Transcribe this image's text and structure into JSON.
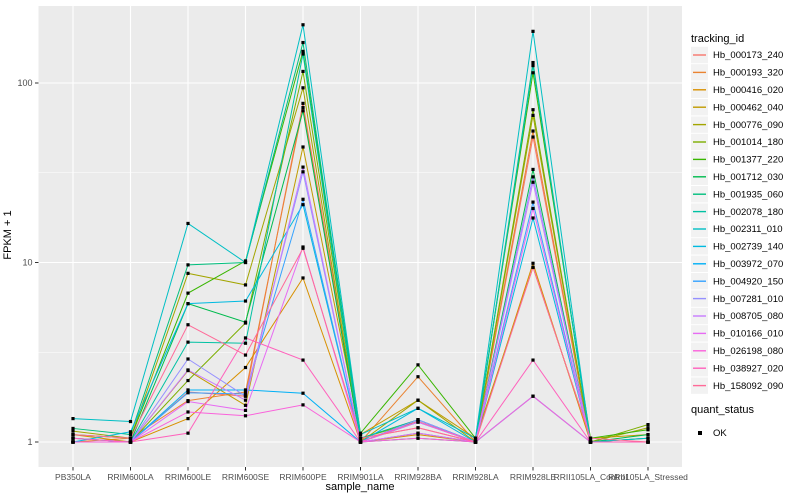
{
  "chart_data": {
    "type": "line",
    "title": "",
    "xlabel": "sample_name",
    "ylabel": "FPKM + 1",
    "y_scale": "log10",
    "y_ticks": [
      1,
      10,
      100
    ],
    "y_minor_ticks": [
      3.1623,
      31.623
    ],
    "ylim": [
      0.73,
      280
    ],
    "grid": "on",
    "legend_position": "right",
    "legend_title": "tracking_id",
    "quant_legend": {
      "title": "quant_status",
      "label": "OK"
    },
    "point_marker": "black-square",
    "colors": {
      "panel_bg": "#EBEBEB",
      "grid": "#FFFFFF",
      "tick_text": "#4D4D4D",
      "axis_text": "#000000",
      "legend_key_bg": "#F2F2F2",
      "point": "#000000"
    },
    "categories": [
      "PB350LA",
      "RRIM600LA",
      "RRIM600LE",
      "RRIM600SE",
      "RRIM600PE",
      "RRIM901LA",
      "RRIM928BA",
      "RRIM928LA",
      "RRIM928LE",
      "RRII105LA_Control",
      "RRII105LA_Stressed"
    ],
    "series": [
      {
        "name": "Hb_000173_240",
        "color": "#F8766D",
        "values": [
          1.05,
          1.0,
          1.9,
          1.8,
          77,
          1.05,
          1.2,
          1.0,
          50,
          1.0,
          1.05
        ]
      },
      {
        "name": "Hb_000193_320",
        "color": "#EA8331",
        "values": [
          1.0,
          1.05,
          1.7,
          1.9,
          73,
          1.0,
          2.31,
          1.0,
          54,
          1.0,
          1.0
        ]
      },
      {
        "name": "Hb_000416_020",
        "color": "#D89000",
        "values": [
          1.1,
          1.0,
          1.35,
          2.6,
          8.2,
          1.0,
          1.1,
          1.0,
          9.9,
          1.0,
          1.0
        ]
      },
      {
        "name": "Hb_000462_040",
        "color": "#C09B00",
        "values": [
          1.0,
          1.0,
          2.5,
          1.6,
          44,
          1.1,
          1.71,
          1.05,
          9.4,
          1.05,
          1.1
        ]
      },
      {
        "name": "Hb_000776_090",
        "color": "#A3A500",
        "values": [
          1.15,
          1.05,
          8.7,
          7.5,
          94,
          1.0,
          1.71,
          1.0,
          66,
          1.0,
          1.2
        ]
      },
      {
        "name": "Hb_001014_180",
        "color": "#7CAE00",
        "values": [
          1.0,
          1.0,
          2.2,
          4.6,
          116,
          1.05,
          1.3,
          1.0,
          71,
          1.0,
          1.25
        ]
      },
      {
        "name": "Hb_001377_220",
        "color": "#39B600",
        "values": [
          1.1,
          1.05,
          6.75,
          10.2,
          150,
          1.12,
          2.69,
          1.05,
          114,
          1.05,
          1.17
        ]
      },
      {
        "name": "Hb_001712_030",
        "color": "#00BB4E",
        "values": [
          1.0,
          1.0,
          5.9,
          4.65,
          70,
          1.0,
          1.05,
          1.0,
          33,
          1.0,
          1.1
        ]
      },
      {
        "name": "Hb_001935_060",
        "color": "#00BF7D",
        "values": [
          1.19,
          1.1,
          9.7,
          10.0,
          168,
          1.05,
          1.33,
          1.0,
          130,
          1.0,
          1.05
        ]
      },
      {
        "name": "Hb_002078_180",
        "color": "#00C1A3",
        "values": [
          1.05,
          1.0,
          3.6,
          3.55,
          145,
          1.0,
          1.12,
          1.0,
          125,
          1.0,
          1.0
        ]
      },
      {
        "name": "Hb_002311_010",
        "color": "#00BFC4",
        "values": [
          1.35,
          1.3,
          16.5,
          10.0,
          211,
          1.1,
          1.54,
          1.05,
          194,
          1.0,
          1.05
        ]
      },
      {
        "name": "Hb_002739_140",
        "color": "#00BAE0",
        "values": [
          1.0,
          1.14,
          5.9,
          6.1,
          21,
          1.0,
          1.54,
          1.0,
          17.7,
          1.0,
          1.0
        ]
      },
      {
        "name": "Hb_003972_070",
        "color": "#00B0F6",
        "values": [
          1.0,
          1.0,
          1.95,
          1.95,
          1.87,
          1.0,
          1.33,
          1.0,
          1.8,
          1.0,
          1.0
        ]
      },
      {
        "name": "Hb_004920_150",
        "color": "#35A2FF",
        "values": [
          1.05,
          1.0,
          1.88,
          1.85,
          22.5,
          1.0,
          1.29,
          1.0,
          21.7,
          1.0,
          1.0
        ]
      },
      {
        "name": "Hb_007281_010",
        "color": "#9590FF",
        "values": [
          1.0,
          1.0,
          2.9,
          1.8,
          32,
          1.0,
          1.33,
          1.0,
          30,
          1.0,
          1.0
        ]
      },
      {
        "name": "Hb_008705_080",
        "color": "#C77CFF",
        "values": [
          1.0,
          1.0,
          2.52,
          1.71,
          34,
          1.0,
          1.29,
          1.0,
          28,
          1.0,
          1.0
        ]
      },
      {
        "name": "Hb_010166_010",
        "color": "#E76BF3",
        "values": [
          1.0,
          1.0,
          1.68,
          1.5,
          12.2,
          1.0,
          1.12,
          1.0,
          20,
          1.0,
          1.0
        ]
      },
      {
        "name": "Hb_026198_080",
        "color": "#FA62DB",
        "values": [
          1.0,
          1.0,
          1.47,
          1.4,
          1.61,
          1.0,
          1.05,
          1.0,
          1.8,
          1.0,
          1.0
        ]
      },
      {
        "name": "Hb_038927_020",
        "color": "#FF62BC",
        "values": [
          1.05,
          1.0,
          1.12,
          3.8,
          2.86,
          1.0,
          1.3,
          1.0,
          2.86,
          1.0,
          1.0
        ]
      },
      {
        "name": "Hb_158092_090",
        "color": "#FF6A98",
        "values": [
          1.1,
          1.05,
          4.5,
          3.05,
          12.0,
          1.05,
          1.2,
          1.0,
          9.4,
          1.05,
          1.0
        ]
      }
    ]
  }
}
